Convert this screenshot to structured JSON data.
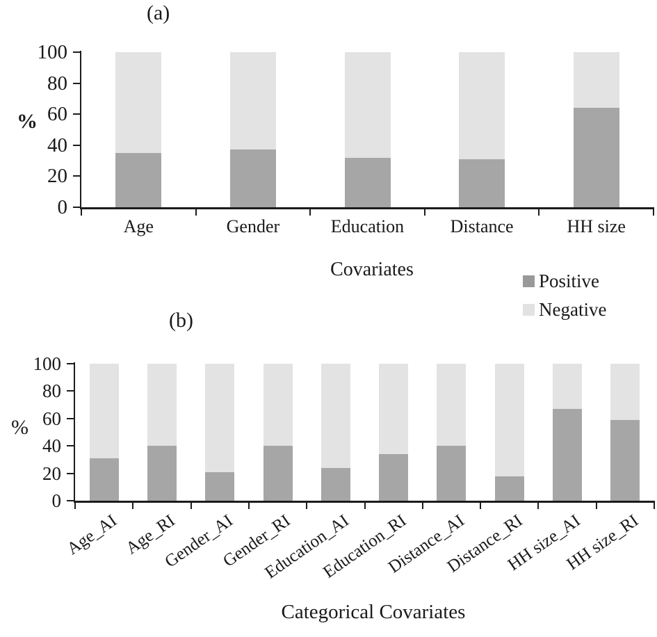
{
  "figure": {
    "background": "#ffffff",
    "colors": {
      "positive": "#a6a6a6",
      "negative": "#e3e3e3",
      "legend_positive": "#999999",
      "legend_negative": "#e2e2e2",
      "axis": "#1c1c1c"
    }
  },
  "legend": {
    "position": "right-of-covariates-label",
    "items": [
      {
        "label": "Positive",
        "color_key": "positive"
      },
      {
        "label": "Negative",
        "color_key": "negative"
      }
    ]
  },
  "chart_data": [
    {
      "id": "a",
      "type": "bar",
      "stacked": true,
      "title": "(a)",
      "ylabel": "%",
      "xlabel": "Covariates",
      "ylim": [
        0,
        100
      ],
      "yticks": [
        0,
        20,
        40,
        60,
        80,
        100
      ],
      "grid": false,
      "categories": [
        "Age",
        "Gender",
        "Education",
        "Distance",
        "HH size"
      ],
      "series": [
        {
          "name": "Positive",
          "values": [
            35,
            37,
            32,
            31,
            64
          ]
        },
        {
          "name": "Negative",
          "values": [
            65,
            63,
            68,
            69,
            36
          ]
        }
      ]
    },
    {
      "id": "b",
      "type": "bar",
      "stacked": true,
      "title": "(b)",
      "ylabel": "%",
      "xlabel": "Categorical Covariates",
      "ylim": [
        0,
        100
      ],
      "yticks": [
        0,
        20,
        40,
        60,
        80,
        100
      ],
      "grid": false,
      "categories": [
        "Age_AI",
        "Age_RI",
        "Gender_AI",
        "Gender_RI",
        "Education_AI",
        "Education_RI",
        "Distance_AI",
        "Distance_RI",
        "HH size_AI",
        "HH size_RI"
      ],
      "series": [
        {
          "name": "Positive",
          "values": [
            31,
            40,
            21,
            40,
            24,
            34,
            40,
            18,
            67,
            59
          ]
        },
        {
          "name": "Negative",
          "values": [
            69,
            60,
            79,
            60,
            76,
            66,
            60,
            82,
            33,
            41
          ]
        }
      ]
    }
  ]
}
